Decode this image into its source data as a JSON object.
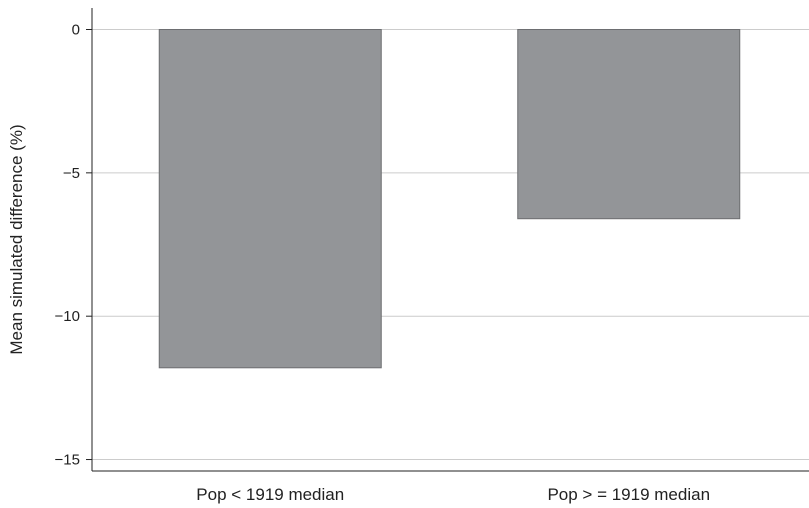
{
  "chart_data": {
    "type": "bar",
    "title": "",
    "xlabel": "",
    "ylabel": "Mean simulated difference (%)",
    "categories": [
      "Pop < 1919 median",
      "Pop > = 1919 median"
    ],
    "values": [
      -11.8,
      -6.6
    ],
    "ylim": [
      -15.4,
      0.75
    ],
    "yticks": [
      0,
      -5,
      -10,
      -15
    ],
    "ytick_labels": [
      "0",
      "−5",
      "−10",
      "−15"
    ],
    "grid": true,
    "colors": {
      "bar_fill": "#939598",
      "bar_stroke": "#6d6e71",
      "grid": "#cccccc",
      "axis": "#222222"
    }
  }
}
